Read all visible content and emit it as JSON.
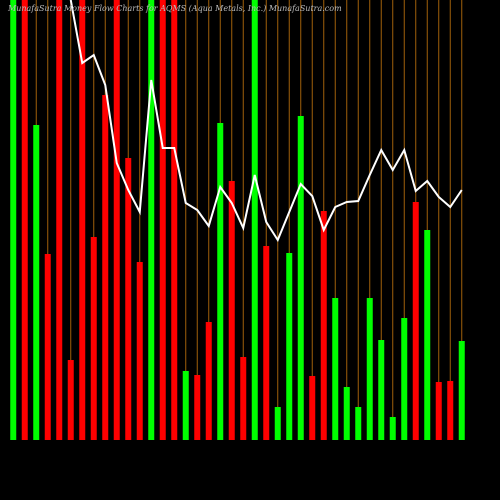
{
  "chart_data": {
    "type": "bar",
    "title": "MunafaSutra Money Flow Charts for AQMS (Aqua Metals, Inc.) MunafaSutra.com",
    "categories": [
      null,
      null,
      null,
      null,
      null,
      null,
      null,
      null,
      null,
      null,
      null,
      null,
      null,
      null,
      null,
      null,
      null,
      null,
      null,
      null,
      null,
      null,
      null,
      null,
      null,
      null,
      null,
      null,
      null,
      null,
      null,
      null,
      null,
      null,
      null,
      null,
      null,
      null,
      null,
      null
    ],
    "values": [
      440,
      440,
      315,
      186,
      440,
      80,
      440,
      203,
      345,
      440,
      282,
      178,
      440,
      440,
      440,
      69,
      65,
      118,
      317,
      259,
      83,
      440,
      194,
      33,
      187,
      324,
      64,
      229,
      142,
      53,
      33,
      142,
      100,
      23,
      122,
      238,
      210,
      58,
      59,
      99
    ],
    "colors": [
      "#00ff00",
      "#ff0000",
      "#00ff00",
      "#ff0000",
      "#ff0000",
      "#ff0000",
      "#ff0000",
      "#ff0000",
      "#ff0000",
      "#ff0000",
      "#ff0000",
      "#ff0000",
      "#00ff00",
      "#ff0000",
      "#ff0000",
      "#00ff00",
      "#ff0000",
      "#ff0000",
      "#00ff00",
      "#ff0000",
      "#ff0000",
      "#00ff00",
      "#ff0000",
      "#00ff00",
      "#00ff00",
      "#00ff00",
      "#ff0000",
      "#ff0000",
      "#00ff00",
      "#00ff00",
      "#00ff00",
      "#00ff00",
      "#00ff00",
      "#00ff00",
      "#00ff00",
      "#ff0000",
      "#00ff00",
      "#ff0000",
      "#ff0000",
      "#00ff00"
    ],
    "line_values": [
      null,
      null,
      null,
      null,
      null,
      440,
      377,
      385,
      355,
      277,
      250,
      228,
      360,
      292,
      292,
      237,
      230,
      214,
      253,
      237,
      212,
      265,
      218,
      200,
      228,
      256,
      244,
      210,
      233,
      238,
      239,
      265,
      290,
      270,
      290,
      249,
      259,
      243,
      233,
      250
    ],
    "line_color": "#ffffff",
    "ylim": [
      0,
      440
    ],
    "grid": true
  }
}
